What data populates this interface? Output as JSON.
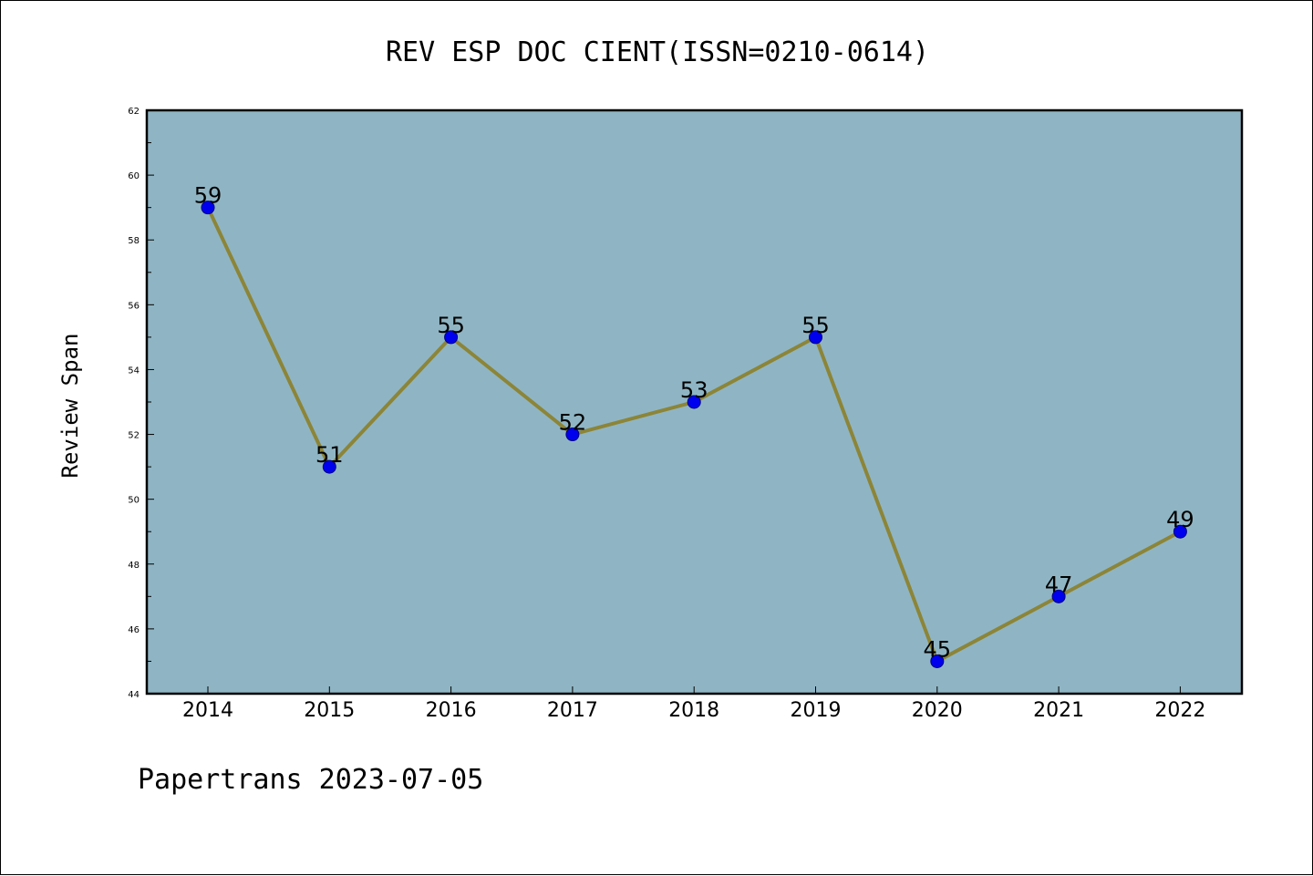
{
  "chart_data": {
    "type": "line",
    "title": "REV ESP DOC CIENT(ISSN=0210-0614)",
    "xlabel": "",
    "ylabel": "Review Span",
    "categories": [
      "2014",
      "2015",
      "2016",
      "2017",
      "2018",
      "2019",
      "2020",
      "2021",
      "2022"
    ],
    "series": [
      {
        "values": [
          59,
          51,
          55,
          52,
          53,
          55,
          45,
          47,
          49
        ]
      }
    ],
    "data_labels": [
      "59",
      "51",
      "55",
      "52",
      "53",
      "55",
      "45",
      "47",
      "49"
    ],
    "ylim": [
      44,
      62
    ],
    "yticks": [
      44,
      46,
      48,
      50,
      52,
      54,
      56,
      58,
      60,
      62
    ],
    "grid": false,
    "legend": "none",
    "colors": {
      "plot_background": "#8fb5c4",
      "line": "#8c8538",
      "marker": "#0000ee",
      "marker_edge": "#000080"
    }
  },
  "footer": "Papertrans 2023-07-05"
}
